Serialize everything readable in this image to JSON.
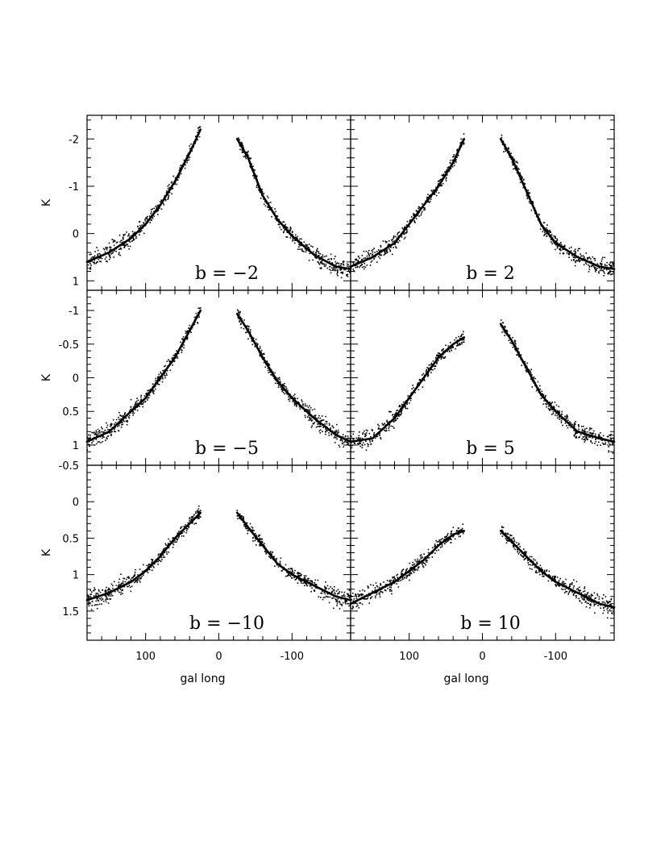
{
  "figure": {
    "xlabel": "gal long",
    "ylabel": "K",
    "x_ticks": [
      100,
      0,
      -100
    ],
    "x_tick_labels": [
      "100",
      "0",
      "-100"
    ],
    "xlim": [
      180,
      -180
    ],
    "colors": {
      "ink": "#000000",
      "background": "#ffffff"
    }
  },
  "chart_data": [
    {
      "type": "scatter",
      "panel_label": "b = −2",
      "ylim": [
        -2.5,
        1.2
      ],
      "y_ticks": [
        -2,
        -1,
        0,
        1
      ],
      "y_tick_labels": [
        "-2",
        "-1",
        "0",
        "1"
      ],
      "show_ylabel": true,
      "show_xlabel": false,
      "series": [
        {
          "type": "line",
          "x": [
            180,
            150,
            120,
            100,
            80,
            60,
            40,
            25
          ],
          "y": [
            0.6,
            0.4,
            0.1,
            -0.2,
            -0.6,
            -1.1,
            -1.7,
            -2.2
          ]
        },
        {
          "type": "line",
          "x": [
            -25,
            -40,
            -60,
            -80,
            -100,
            -130,
            -160,
            -180
          ],
          "y": [
            -2.0,
            -1.6,
            -0.8,
            -0.3,
            0.05,
            0.45,
            0.7,
            0.75
          ]
        }
      ]
    },
    {
      "type": "scatter",
      "panel_label": "b = 2",
      "ylim": [
        -2.5,
        1.2
      ],
      "y_ticks": [
        -2,
        -1,
        0,
        1
      ],
      "y_tick_labels": [],
      "show_ylabel": false,
      "show_xlabel": false,
      "series": [
        {
          "type": "line",
          "x": [
            180,
            150,
            120,
            100,
            80,
            60,
            40,
            25
          ],
          "y": [
            0.7,
            0.5,
            0.2,
            -0.2,
            -0.6,
            -1.0,
            -1.5,
            -2.0
          ]
        },
        {
          "type": "line",
          "x": [
            -25,
            -40,
            -60,
            -80,
            -100,
            -130,
            -160,
            -180
          ],
          "y": [
            -2.0,
            -1.6,
            -0.9,
            -0.2,
            0.2,
            0.5,
            0.7,
            0.75
          ]
        }
      ]
    },
    {
      "type": "scatter",
      "panel_label": "b = −5",
      "ylim": [
        -1.3,
        1.3
      ],
      "y_ticks": [
        -1,
        -0.5,
        0,
        0.5,
        1
      ],
      "y_tick_labels": [
        "-1",
        "-0.5",
        "0",
        "0.5",
        "1"
      ],
      "show_ylabel": true,
      "show_xlabel": false,
      "series": [
        {
          "type": "line",
          "x": [
            180,
            150,
            120,
            100,
            80,
            60,
            40,
            25
          ],
          "y": [
            0.95,
            0.8,
            0.5,
            0.3,
            0.0,
            -0.3,
            -0.7,
            -1.0
          ]
        },
        {
          "type": "line",
          "x": [
            -25,
            -40,
            -60,
            -80,
            -100,
            -130,
            -160,
            -180
          ],
          "y": [
            -0.95,
            -0.7,
            -0.3,
            0.05,
            0.3,
            0.6,
            0.85,
            0.95
          ]
        }
      ]
    },
    {
      "type": "scatter",
      "panel_label": "b = 5",
      "ylim": [
        -1.3,
        1.3
      ],
      "y_ticks": [
        -1,
        -0.5,
        0,
        0.5,
        1
      ],
      "y_tick_labels": [],
      "show_ylabel": false,
      "show_xlabel": false,
      "series": [
        {
          "type": "line",
          "x": [
            180,
            150,
            120,
            100,
            80,
            60,
            40,
            25
          ],
          "y": [
            0.95,
            0.9,
            0.6,
            0.3,
            0.0,
            -0.3,
            -0.5,
            -0.6
          ]
        },
        {
          "type": "line",
          "x": [
            -25,
            -40,
            -60,
            -80,
            -100,
            -130,
            -160,
            -180
          ],
          "y": [
            -0.8,
            -0.55,
            -0.15,
            0.25,
            0.5,
            0.8,
            0.9,
            0.95
          ]
        }
      ]
    },
    {
      "type": "scatter",
      "panel_label": "b = −10",
      "ylim": [
        -0.5,
        1.9
      ],
      "y_ticks": [
        -0.5,
        0,
        0.5,
        1,
        1.5
      ],
      "y_tick_labels": [
        "-0.5",
        "0",
        "0.5",
        "1",
        "1.5"
      ],
      "show_ylabel": true,
      "show_xlabel": true,
      "series": [
        {
          "type": "line",
          "x": [
            180,
            150,
            120,
            100,
            80,
            60,
            40,
            25
          ],
          "y": [
            1.35,
            1.25,
            1.1,
            0.95,
            0.75,
            0.5,
            0.3,
            0.15
          ]
        },
        {
          "type": "line",
          "x": [
            -25,
            -40,
            -60,
            -80,
            -100,
            -130,
            -160,
            -180
          ],
          "y": [
            0.15,
            0.35,
            0.6,
            0.85,
            1.0,
            1.15,
            1.3,
            1.35
          ]
        }
      ]
    },
    {
      "type": "scatter",
      "panel_label": "b = 10",
      "ylim": [
        -0.5,
        1.9
      ],
      "y_ticks": [
        -0.5,
        0,
        0.5,
        1,
        1.5
      ],
      "y_tick_labels": [],
      "show_ylabel": false,
      "show_xlabel": true,
      "series": [
        {
          "type": "line",
          "x": [
            180,
            150,
            120,
            100,
            80,
            60,
            40,
            25
          ],
          "y": [
            1.4,
            1.25,
            1.1,
            0.95,
            0.8,
            0.6,
            0.45,
            0.4
          ]
        },
        {
          "type": "line",
          "x": [
            -25,
            -40,
            -60,
            -80,
            -100,
            -130,
            -160,
            -180
          ],
          "y": [
            0.4,
            0.55,
            0.75,
            0.95,
            1.1,
            1.25,
            1.4,
            1.45
          ]
        }
      ]
    }
  ]
}
